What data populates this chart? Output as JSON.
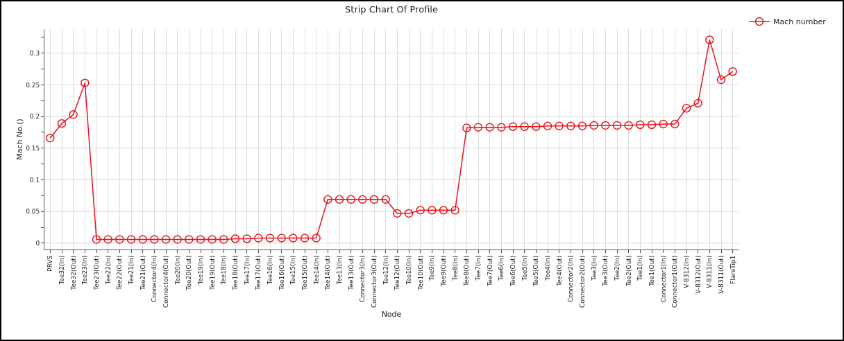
{
  "chart_data": {
    "type": "line",
    "title": "Strip Chart Of Profile",
    "xlabel": "Node",
    "ylabel": "Mach No.()",
    "categories": [
      "PRVS",
      "Tee32(In)",
      "Tee32(Out)",
      "Tee23(In)",
      "Tee23(Out)",
      "Tee22(In)",
      "Tee22(Out)",
      "Tee21(In)",
      "Tee21(Out)",
      "Connector4(In)",
      "Connector4(Out)",
      "Tee20(In)",
      "Tee20(Out)",
      "Tee19(In)",
      "Tee19(Out)",
      "Tee18(In)",
      "Tee18(Out)",
      "Tee17(In)",
      "Tee17(Out)",
      "Tee16(In)",
      "Tee16(Out)",
      "Tee15(In)",
      "Tee15(Out)",
      "Tee14(In)",
      "Tee14(Out)",
      "Tee13(In)",
      "Tee13(Out)",
      "Connector3(In)",
      "Connector3(Out)",
      "Tee12(In)",
      "Tee12(Out)",
      "Tee10(In)",
      "Tee10(Out)",
      "Tee9(In)",
      "Tee9(Out)",
      "Tee8(In)",
      "Tee8(Out)",
      "Tee7(In)",
      "Tee7(Out)",
      "Tee6(In)",
      "Tee6(Out)",
      "Tee5(In)",
      "Tee5(Out)",
      "Tee4(In)",
      "Tee4(Out)",
      "Connector2(In)",
      "Connector2(Out)",
      "Tee3(In)",
      "Tee3(Out)",
      "Tee2(In)",
      "Tee2(Out)",
      "Tee1(In)",
      "Tee1(Out)",
      "Connector1(In)",
      "Connector1(Out)",
      "V-8312(In)",
      "V-8312(Out)",
      "V-8311(In)",
      "V-8311(Out)",
      "FlareTip1"
    ],
    "series": [
      {
        "name": "Mach number",
        "color": "#e8141c",
        "values": [
          0.166,
          0.189,
          0.203,
          0.253,
          0.006,
          0.006,
          0.006,
          0.006,
          0.006,
          0.006,
          0.006,
          0.006,
          0.006,
          0.006,
          0.006,
          0.006,
          0.007,
          0.007,
          0.008,
          0.008,
          0.008,
          0.008,
          0.008,
          0.008,
          0.069,
          0.069,
          0.069,
          0.069,
          0.069,
          0.069,
          0.047,
          0.047,
          0.052,
          0.052,
          0.052,
          0.052,
          0.182,
          0.183,
          0.183,
          0.183,
          0.184,
          0.184,
          0.184,
          0.185,
          0.185,
          0.185,
          0.185,
          0.186,
          0.186,
          0.186,
          0.186,
          0.187,
          0.187,
          0.188,
          0.188,
          0.213,
          0.221,
          0.321,
          0.258,
          0.271
        ]
      }
    ],
    "ylim": [
      -0.01,
      0.338
    ],
    "yticks": [
      0,
      {
        "value": 0.025,
        "label": null
      },
      0.05,
      {
        "value": 0.075,
        "label": null
      },
      0.1,
      {
        "value": 0.125,
        "label": null
      },
      0.15,
      {
        "value": 0.175,
        "label": null
      },
      0.2,
      {
        "value": 0.225,
        "label": null
      },
      0.25,
      {
        "value": 0.275,
        "label": null
      },
      0.3,
      {
        "value": 0.325,
        "label": null
      }
    ],
    "grid": true,
    "legend": "top right",
    "marker": "circle",
    "line_style": "solid"
  }
}
